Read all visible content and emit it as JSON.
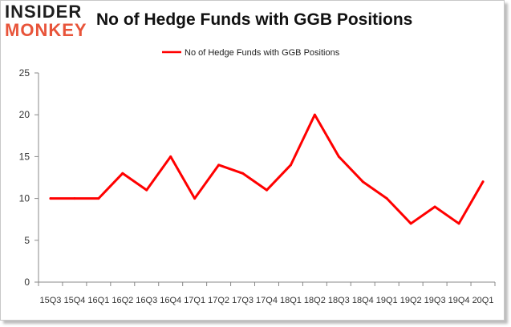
{
  "brand": {
    "line1": "INSIDER",
    "line2": "MONKEY"
  },
  "chart_data": {
    "type": "line",
    "title": "No of Hedge Funds with GGB Positions",
    "xlabel": "",
    "ylabel": "",
    "categories": [
      "15Q3",
      "15Q4",
      "16Q1",
      "16Q2",
      "16Q3",
      "16Q4",
      "17Q1",
      "17Q2",
      "17Q3",
      "17Q4",
      "18Q1",
      "18Q2",
      "18Q3",
      "18Q4",
      "19Q1",
      "19Q2",
      "19Q3",
      "19Q4",
      "20Q1"
    ],
    "series": [
      {
        "name": "No of Hedge Funds with GGB Positions",
        "values": [
          10,
          10,
          10,
          13,
          11,
          15,
          10,
          14,
          13,
          11,
          14,
          20,
          15,
          12,
          10,
          7,
          9,
          7,
          12
        ],
        "color": "#ff0000"
      }
    ],
    "ylim": [
      0,
      25
    ],
    "yticks": [
      0,
      5,
      10,
      15,
      20,
      25
    ],
    "grid": false,
    "legend": "top-center"
  }
}
